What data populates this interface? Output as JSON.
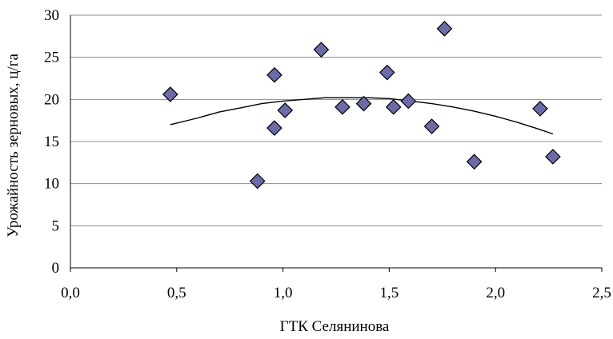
{
  "chart_data": {
    "type": "scatter",
    "title": "",
    "xlabel": "ГТК Селянинова",
    "ylabel": "Урожайность зерновых, ц/га",
    "xlim": [
      0,
      2.5
    ],
    "ylim": [
      0,
      30
    ],
    "x_ticks": [
      "0,0",
      "0,5",
      "1,0",
      "1,5",
      "2,0",
      "2,5"
    ],
    "y_ticks": [
      "0",
      "5",
      "10",
      "15",
      "20",
      "25",
      "30"
    ],
    "grid": "horizontal",
    "legend": "none",
    "marker_color": "#6b6ba8",
    "points": [
      {
        "x": 0.47,
        "y": 20.6
      },
      {
        "x": 0.88,
        "y": 10.3
      },
      {
        "x": 0.96,
        "y": 22.9
      },
      {
        "x": 0.96,
        "y": 16.6
      },
      {
        "x": 1.01,
        "y": 18.7
      },
      {
        "x": 1.18,
        "y": 25.9
      },
      {
        "x": 1.28,
        "y": 19.1
      },
      {
        "x": 1.38,
        "y": 19.5
      },
      {
        "x": 1.49,
        "y": 23.2
      },
      {
        "x": 1.52,
        "y": 19.1
      },
      {
        "x": 1.59,
        "y": 19.8
      },
      {
        "x": 1.7,
        "y": 16.8
      },
      {
        "x": 1.76,
        "y": 28.4
      },
      {
        "x": 1.9,
        "y": 12.6
      },
      {
        "x": 2.21,
        "y": 18.9
      },
      {
        "x": 2.27,
        "y": 13.2
      }
    ],
    "trendline": {
      "type": "polynomial",
      "x": [
        0.47,
        0.6,
        0.7,
        0.8,
        0.9,
        1.0,
        1.1,
        1.2,
        1.3,
        1.4,
        1.5,
        1.6,
        1.7,
        1.8,
        1.9,
        2.0,
        2.1,
        2.2,
        2.27
      ],
      "y": [
        17.0,
        17.8,
        18.5,
        19.0,
        19.5,
        19.8,
        20.0,
        20.2,
        20.2,
        20.2,
        20.1,
        19.8,
        19.5,
        19.1,
        18.6,
        18.0,
        17.3,
        16.5,
        15.9
      ]
    }
  }
}
